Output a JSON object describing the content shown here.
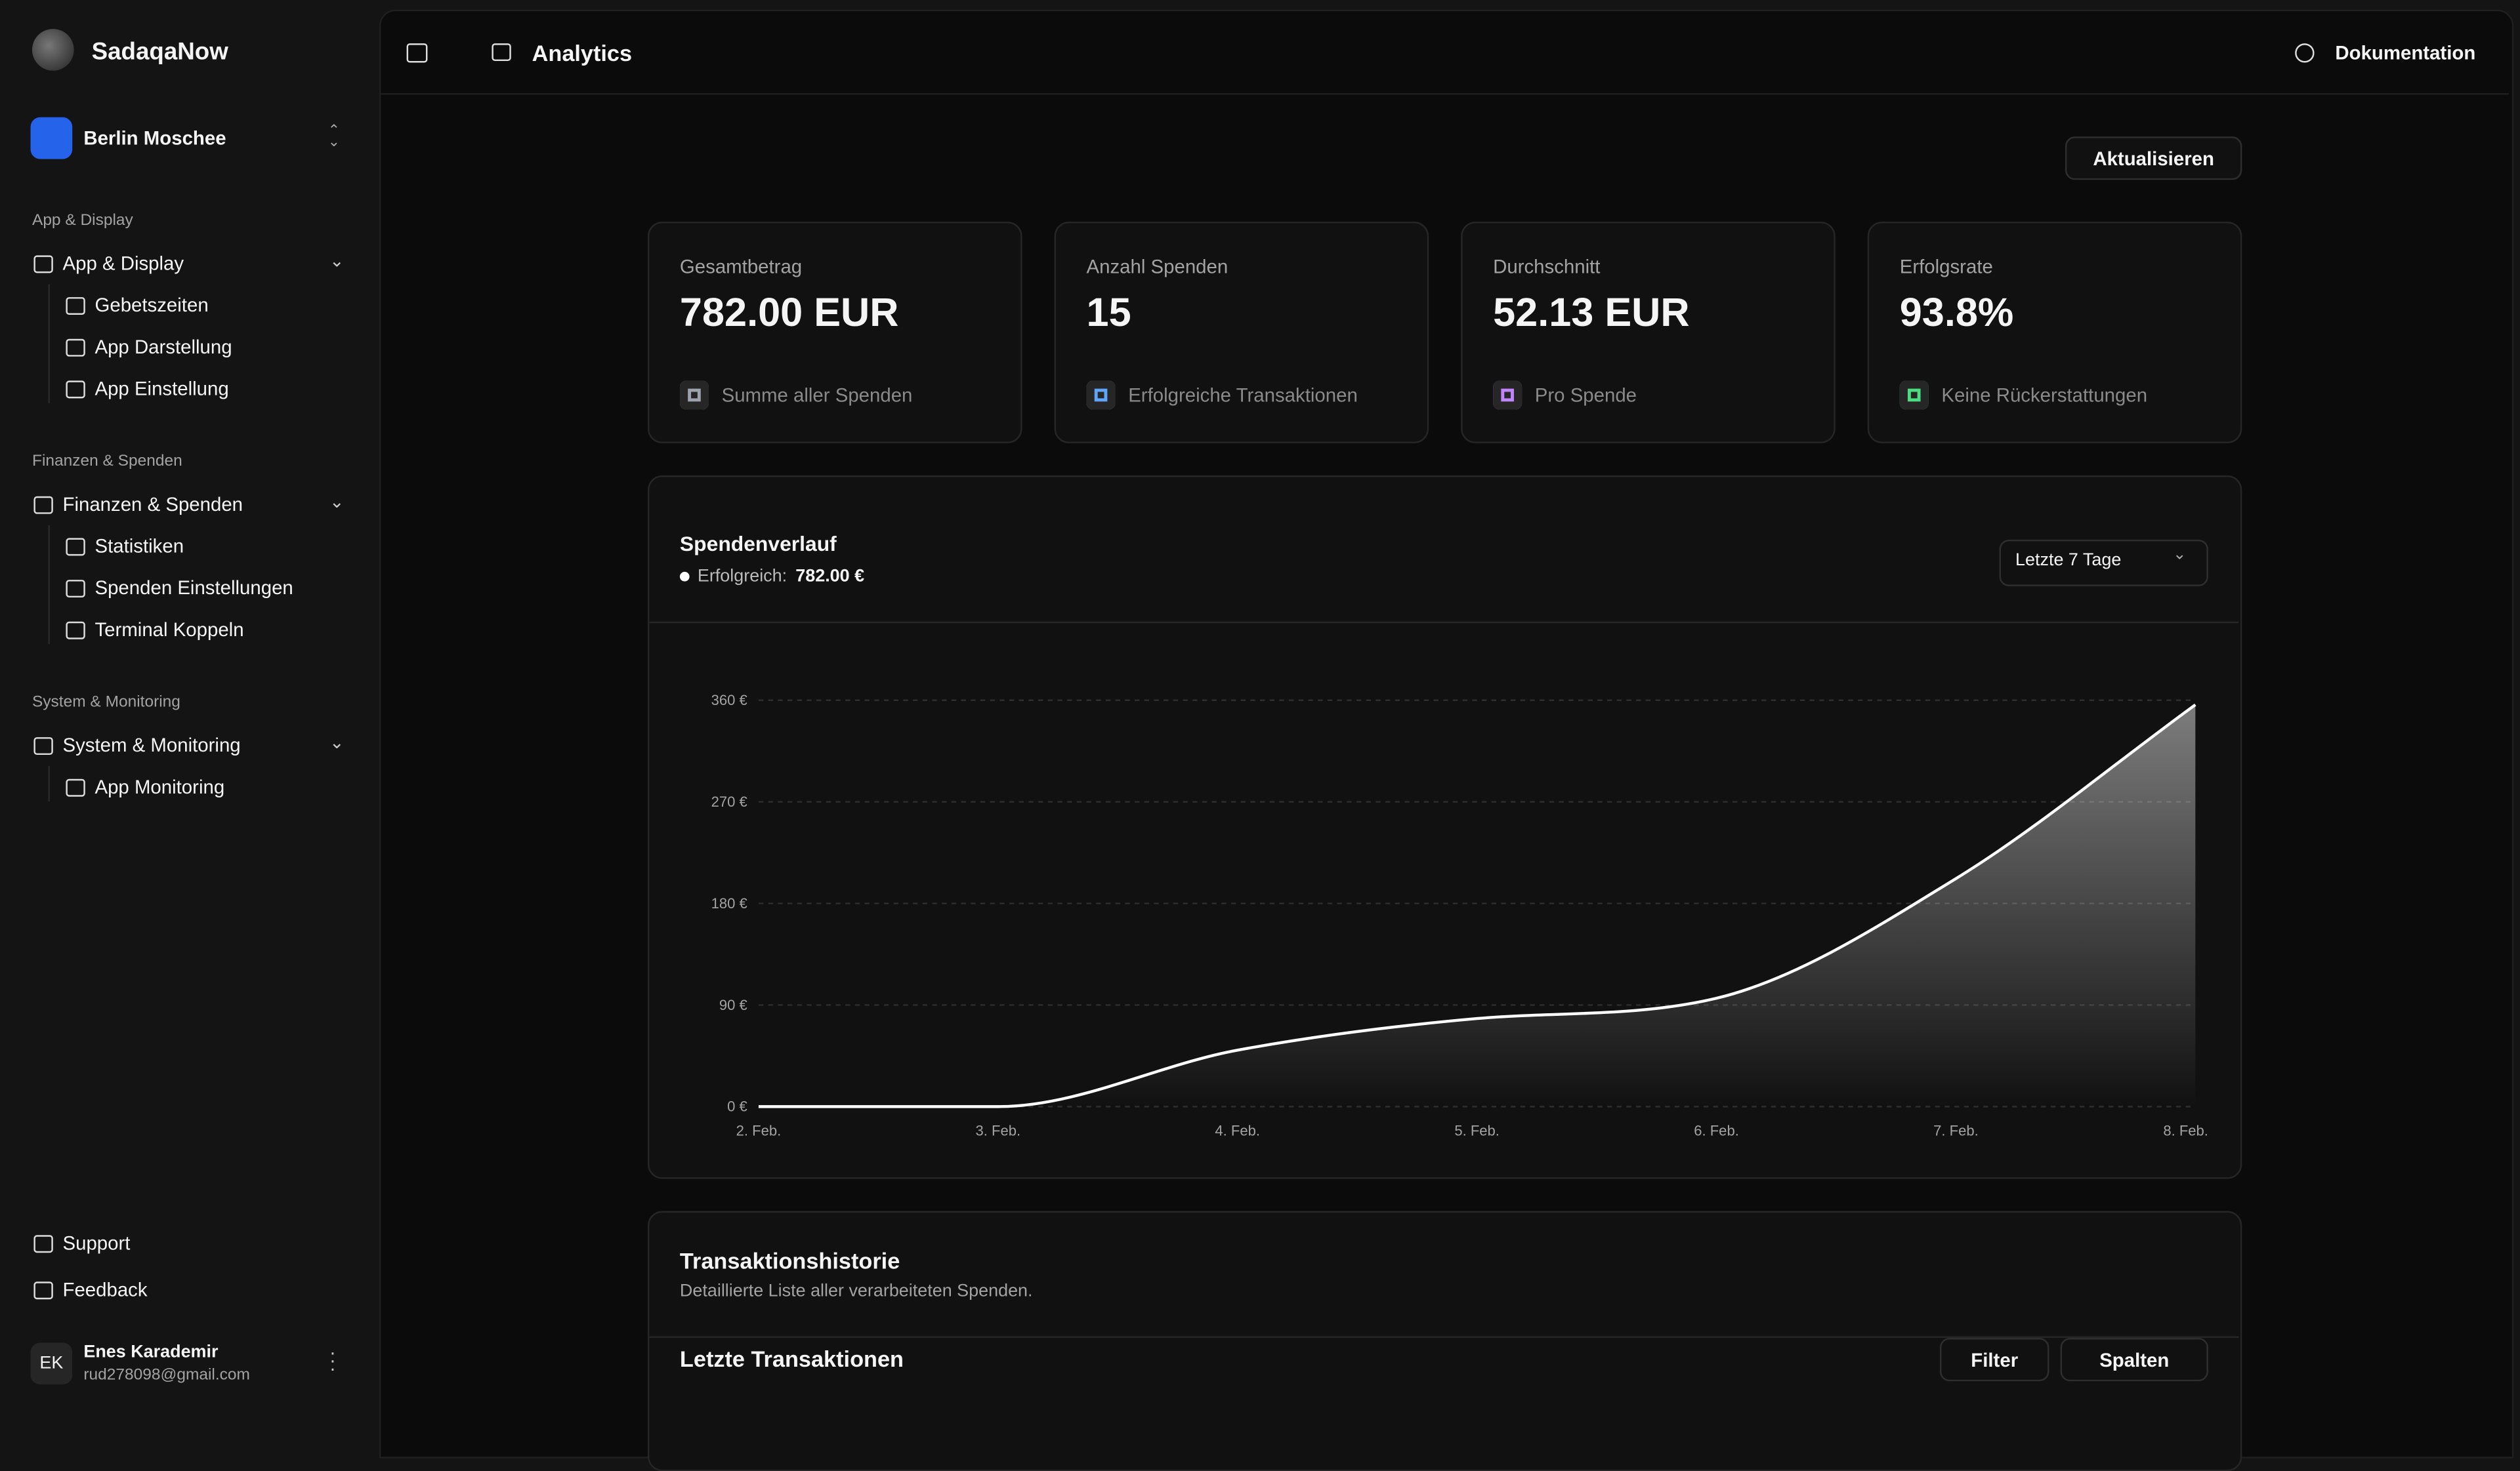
{
  "sidebar": {
    "brand": "SadaqaNow",
    "workspace": "Berlin Moschee",
    "groups": [
      {
        "label": "App & Display",
        "title": "App & Display",
        "items": [
          "Gebetszeiten",
          "App Darstellung",
          "App Einstellung"
        ]
      },
      {
        "label": "Finanzen & Spenden",
        "title": "Finanzen & Spenden",
        "items": [
          "Statistiken",
          "Spenden Einstellungen",
          "Terminal Koppeln"
        ]
      },
      {
        "label": "System & Monitoring",
        "title": "System & Monitoring",
        "items": [
          "App Monitoring"
        ]
      }
    ],
    "footer_links": [
      "Support",
      "Feedback"
    ],
    "user": {
      "initials": "EK",
      "name": "Enes Karademir",
      "email": "rud278098@gmail.com"
    }
  },
  "header": {
    "title": "Analytics",
    "docs": "Dokumentation"
  },
  "refresh": "Aktualisieren",
  "stats": [
    {
      "label": "Gesamtbetrag",
      "value": "782.00 EUR",
      "note": "Summe aller Spenden",
      "color": "#9ca3af"
    },
    {
      "label": "Anzahl Spenden",
      "value": "15",
      "note": "Erfolgreiche Transaktionen",
      "color": "#60a5fa"
    },
    {
      "label": "Durchschnitt",
      "value": "52.13 EUR",
      "note": "Pro Spende",
      "color": "#c084fc"
    },
    {
      "label": "Erfolgsrate",
      "value": "93.8%",
      "note": "Keine Rückerstattungen",
      "color": "#4ade80"
    }
  ],
  "chart_data": {
    "type": "area",
    "title": "Spendenverlauf",
    "legend": {
      "label": "Erfolgreich:",
      "value": "782.00 €"
    },
    "range_select": "Letzte 7 Tage",
    "categories": [
      "2. Feb.",
      "3. Feb.",
      "4. Feb.",
      "5. Feb.",
      "6. Feb.",
      "7. Feb.",
      "8. Feb."
    ],
    "values": [
      0,
      0,
      50,
      78,
      96,
      202,
      356
    ],
    "color": "#ffffff",
    "ylim": [
      0,
      360
    ],
    "yticks": [
      {
        "value": 0,
        "label": "0 €"
      },
      {
        "value": 90,
        "label": "90 €"
      },
      {
        "value": 180,
        "label": "180 €"
      },
      {
        "value": 270,
        "label": "270 €"
      },
      {
        "value": 360,
        "label": "360 €"
      }
    ],
    "grid": true
  },
  "transactions": {
    "title": "Transaktionshistorie",
    "subtitle": "Detaillierte Liste aller verarbeiteten Spenden.",
    "table_title": "Letzte Transaktionen",
    "filter": "Filter",
    "columns": "Spalten"
  }
}
